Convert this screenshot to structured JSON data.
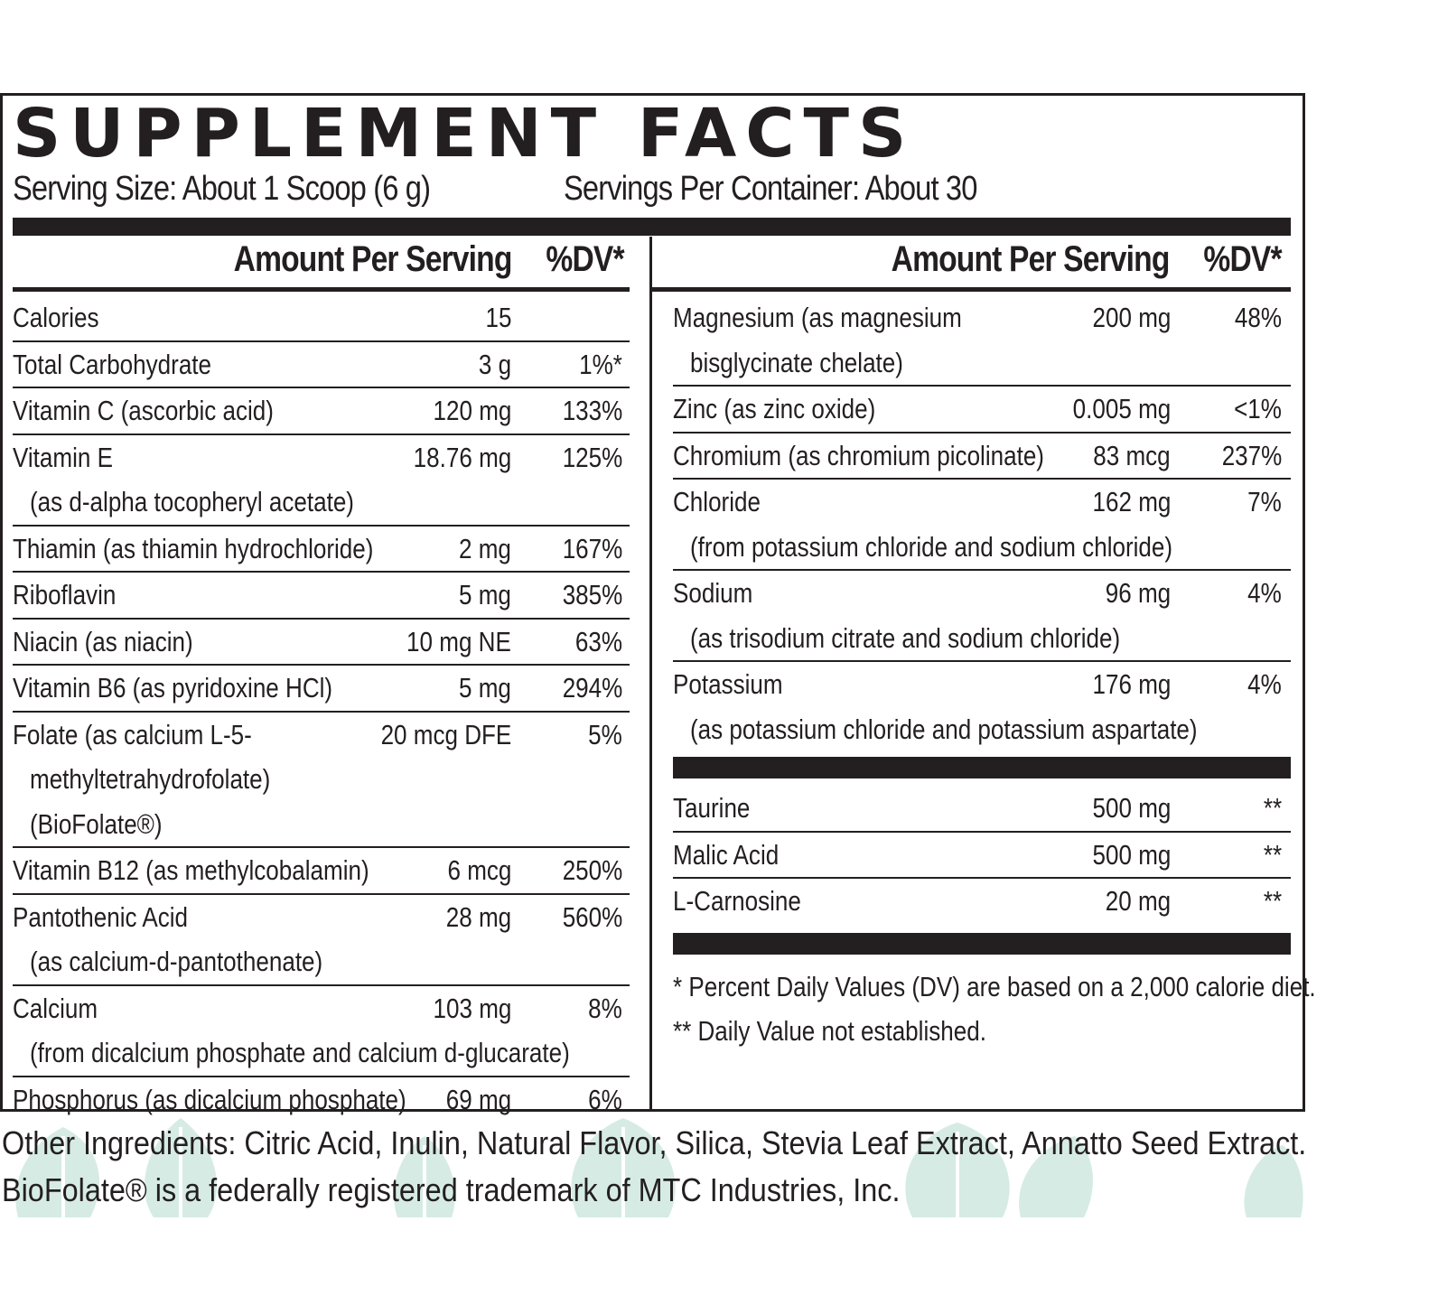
{
  "title": "SUPPLEMENT FACTS",
  "serving_size": "Serving Size:  About 1 Scoop (6 g)",
  "servings_per_container": "Servings Per Container: About 30",
  "left_header": {
    "amount": "Amount Per Serving",
    "dv": "%DV*"
  },
  "right_header": {
    "amount": "Amount Per Serving",
    "dv": "%DV*"
  },
  "left_rows": [
    {
      "name": "Calories",
      "sub": [],
      "amount": "15",
      "dv": ""
    },
    {
      "name": "Total Carbohydrate",
      "sub": [],
      "amount": "3 g",
      "dv": "1%*"
    },
    {
      "name": "Vitamin C (ascorbic acid)",
      "sub": [],
      "amount": "120 mg",
      "dv": "133%"
    },
    {
      "name": "Vitamin E",
      "sub": [
        "(as d-alpha tocopheryl acetate)"
      ],
      "amount": "18.76 mg",
      "dv": "125%"
    },
    {
      "name": "Thiamin (as thiamin hydrochloride)",
      "sub": [],
      "amount": "2 mg",
      "dv": "167%"
    },
    {
      "name": "Riboflavin",
      "sub": [],
      "amount": "5 mg",
      "dv": "385%"
    },
    {
      "name": "Niacin (as niacin)",
      "sub": [],
      "amount": "10 mg NE",
      "dv": "63%"
    },
    {
      "name": "Vitamin B6 (as pyridoxine HCl)",
      "sub": [],
      "amount": "5 mg",
      "dv": "294%"
    },
    {
      "name": "Folate (as calcium L-5-",
      "sub": [
        "methyltetrahydrofolate)",
        "(BioFolate®)"
      ],
      "amount": "20 mcg DFE",
      "dv": "5%"
    },
    {
      "name": "Vitamin B12 (as methylcobalamin)",
      "sub": [],
      "amount": "6 mcg",
      "dv": "250%"
    },
    {
      "name": "Pantothenic Acid",
      "sub": [
        "(as calcium-d-pantothenate)"
      ],
      "amount": "28 mg",
      "dv": "560%"
    },
    {
      "name": "Calcium",
      "sub": [
        "(from dicalcium phosphate and calcium d-glucarate)"
      ],
      "amount": "103 mg",
      "dv": "8%"
    },
    {
      "name": "Phosphorus (as dicalcium phosphate)",
      "sub": [],
      "amount": "69 mg",
      "dv": "6%"
    }
  ],
  "right_rows": [
    {
      "name": "Magnesium (as magnesium",
      "sub": [
        "bisglycinate chelate)"
      ],
      "amount": "200 mg",
      "dv": "48%"
    },
    {
      "name": "Zinc (as zinc oxide)",
      "sub": [],
      "amount": "0.005 mg",
      "dv": "<1%"
    },
    {
      "name": "Chromium (as chromium picolinate)",
      "sub": [],
      "amount": "83 mcg",
      "dv": "237%"
    },
    {
      "name": "Chloride",
      "sub": [
        "(from potassium chloride and sodium chloride)"
      ],
      "amount": "162 mg",
      "dv": "7%"
    },
    {
      "name": "Sodium",
      "sub": [
        "(as trisodium citrate and sodium chloride)"
      ],
      "amount": "96 mg",
      "dv": "4%"
    },
    {
      "name": "Potassium",
      "sub": [
        "(as potassium chloride and potassium aspartate)"
      ],
      "amount": "176 mg",
      "dv": "4%"
    }
  ],
  "right_rows_2": [
    {
      "name": "Taurine",
      "sub": [],
      "amount": "500 mg",
      "dv": "**"
    },
    {
      "name": "Malic Acid",
      "sub": [],
      "amount": "500 mg",
      "dv": "**"
    },
    {
      "name": "L-Carnosine",
      "sub": [],
      "amount": "20 mg",
      "dv": "**"
    }
  ],
  "footnotes": {
    "dv_note": "* Percent Daily Values (DV) are based on a 2,000 calorie diet.",
    "not_established": "** Daily Value not established."
  },
  "other_ingredients": "Other Ingredients: Citric Acid, Inulin, Natural Flavor, Silica, Stevia Leaf Extract, Annatto Seed Extract.",
  "trademark": "BioFolate® is a federally registered trademark of MTC Industries, Inc.",
  "colors": {
    "ink": "#231f20",
    "leaf": "#d6ebe4"
  }
}
